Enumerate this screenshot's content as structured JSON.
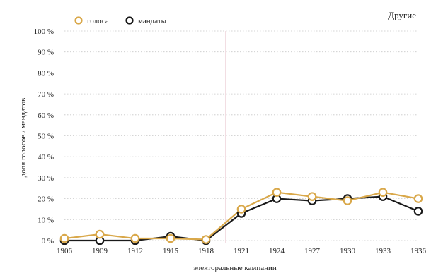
{
  "chart_data": {
    "type": "line",
    "title": "Другие",
    "xlabel": "электоральные кампании",
    "ylabel": "доля голосов / мандатов",
    "x": [
      "1906",
      "1909",
      "1912",
      "1915",
      "1918",
      "1921",
      "1924",
      "1927",
      "1930",
      "1933",
      "1936"
    ],
    "ylim": [
      0,
      100
    ],
    "yticks": [
      0,
      10,
      20,
      30,
      40,
      50,
      60,
      70,
      80,
      90,
      100
    ],
    "ytick_labels": [
      "0 %",
      "10 %",
      "20 %",
      "30 %",
      "40 %",
      "50 %",
      "60 %",
      "70 %",
      "80 %",
      "90 %",
      "100 %"
    ],
    "grid": true,
    "legend_position": "top-left",
    "vertical_marker_between": [
      "1918",
      "1921"
    ],
    "series": [
      {
        "name": "голоса",
        "color": "#d9a84a",
        "values": [
          1,
          3,
          1,
          1,
          0.5,
          15,
          23,
          21,
          19,
          23,
          20
        ]
      },
      {
        "name": "мандаты",
        "color": "#1a1a1a",
        "values": [
          0,
          0,
          0,
          2,
          0,
          13,
          20,
          19,
          20,
          21,
          14
        ]
      }
    ],
    "marker_line_color": "#e8c9d0"
  }
}
